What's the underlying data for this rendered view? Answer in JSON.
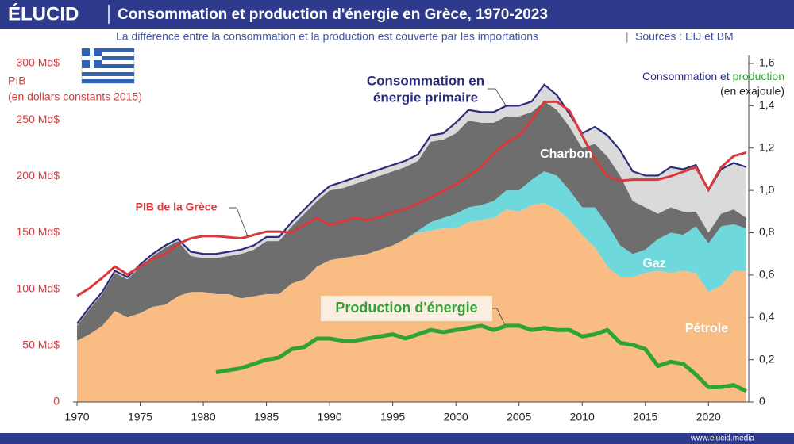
{
  "header": {
    "logo": "ÉLUCID",
    "title": "Consommation et production d'énergie en Grèce, 1970-2023",
    "subtitle": "La différence entre la consommation et la production est couverte par les importations",
    "sources": "Sources : EIJ et BM"
  },
  "footer": "www.elucid.media",
  "chart_data": {
    "type": "stacked_area_line",
    "left_axis_label": [
      "PIB",
      "(en dollars constants 2015)"
    ],
    "right_axis_label": [
      "Consommation et ",
      "production",
      "(en exajoule)"
    ],
    "x": [
      1970,
      1971,
      1972,
      1973,
      1974,
      1975,
      1976,
      1977,
      1978,
      1979,
      1980,
      1981,
      1982,
      1983,
      1984,
      1985,
      1986,
      1987,
      1988,
      1989,
      1990,
      1991,
      1992,
      1993,
      1994,
      1995,
      1996,
      1997,
      1998,
      1999,
      2000,
      2001,
      2002,
      2003,
      2004,
      2005,
      2006,
      2007,
      2008,
      2009,
      2010,
      2011,
      2012,
      2013,
      2014,
      2015,
      2016,
      2017,
      2018,
      2019,
      2020,
      2021,
      2022,
      2023
    ],
    "xlim": [
      1970,
      2023
    ],
    "xticks": [
      1970,
      1975,
      1980,
      1985,
      1990,
      1995,
      2000,
      2005,
      2010,
      2015,
      2020
    ],
    "ylim": [
      0,
      300
    ],
    "yticks": [
      0,
      {
        "value": 50,
        "label": "50 Md$"
      },
      {
        "value": 100,
        "label": "100 Md$"
      },
      {
        "value": 150,
        "label": "150 Md$"
      },
      {
        "value": 200,
        "label": "200 Md$"
      },
      {
        "value": 250,
        "label": "250 Md$"
      },
      {
        "value": 300,
        "label": "300 Md$"
      }
    ],
    "y2lim": [
      0,
      1.6
    ],
    "y2ticks": [
      0,
      {
        "value": 0.2,
        "label": "0,2"
      },
      {
        "value": 0.4,
        "label": "0,4"
      },
      {
        "value": 0.6,
        "label": "0,6"
      },
      {
        "value": 0.8,
        "label": "0,8"
      },
      {
        "value": 1.0,
        "label": "1,0"
      },
      {
        "value": 1.2,
        "label": "1,2"
      },
      {
        "value": 1.4,
        "label": "1,4"
      },
      {
        "value": 1.6,
        "label": "1,6"
      }
    ],
    "outline_color": "#2b2d7c",
    "series": [
      {
        "name": "Pétrole",
        "color": "#f9bd84",
        "kind": "area",
        "axis": "y2",
        "values": [
          0.29,
          0.32,
          0.36,
          0.43,
          0.4,
          0.42,
          0.45,
          0.46,
          0.5,
          0.52,
          0.52,
          0.51,
          0.51,
          0.49,
          0.5,
          0.51,
          0.51,
          0.56,
          0.58,
          0.64,
          0.67,
          0.68,
          0.69,
          0.7,
          0.72,
          0.74,
          0.77,
          0.8,
          0.81,
          0.82,
          0.82,
          0.85,
          0.86,
          0.87,
          0.91,
          0.9,
          0.93,
          0.94,
          0.91,
          0.86,
          0.79,
          0.73,
          0.64,
          0.59,
          0.59,
          0.61,
          0.62,
          0.61,
          0.62,
          0.61,
          0.52,
          0.55,
          0.62,
          0.62
        ]
      },
      {
        "name": "Gaz",
        "color": "#6fd8dc",
        "kind": "area",
        "axis": "y2",
        "values": [
          0,
          0,
          0,
          0,
          0,
          0,
          0,
          0,
          0,
          0,
          0,
          0,
          0,
          0,
          0,
          0,
          0,
          0,
          0,
          0,
          0,
          0,
          0,
          0,
          0,
          0,
          0,
          0.01,
          0.04,
          0.05,
          0.07,
          0.07,
          0.07,
          0.08,
          0.09,
          0.1,
          0.12,
          0.15,
          0.16,
          0.14,
          0.13,
          0.19,
          0.2,
          0.15,
          0.11,
          0.11,
          0.15,
          0.19,
          0.17,
          0.22,
          0.23,
          0.28,
          0.22,
          0.2
        ]
      },
      {
        "name": "Charbon",
        "color": "#6e6e6e",
        "kind": "area",
        "axis": "y2",
        "values": [
          0.07,
          0.12,
          0.15,
          0.18,
          0.18,
          0.22,
          0.24,
          0.27,
          0.26,
          0.17,
          0.16,
          0.17,
          0.18,
          0.21,
          0.22,
          0.25,
          0.25,
          0.27,
          0.31,
          0.31,
          0.33,
          0.33,
          0.34,
          0.35,
          0.35,
          0.35,
          0.34,
          0.33,
          0.38,
          0.37,
          0.38,
          0.41,
          0.39,
          0.37,
          0.35,
          0.35,
          0.32,
          0.33,
          0.31,
          0.3,
          0.28,
          0.3,
          0.32,
          0.33,
          0.25,
          0.2,
          0.12,
          0.12,
          0.11,
          0.07,
          0.05,
          0.06,
          0.07,
          0.05
        ]
      },
      {
        "color": "#dadada",
        "kind": "area",
        "axis": "y2",
        "values": [
          0.01,
          0.01,
          0.01,
          0.01,
          0.01,
          0.01,
          0.01,
          0.01,
          0.01,
          0.02,
          0.02,
          0.02,
          0.02,
          0.02,
          0.02,
          0.02,
          0.02,
          0.02,
          0.02,
          0.02,
          0.02,
          0.03,
          0.03,
          0.03,
          0.03,
          0.03,
          0.03,
          0.03,
          0.03,
          0.03,
          0.05,
          0.05,
          0.05,
          0.05,
          0.05,
          0.05,
          0.05,
          0.08,
          0.07,
          0.06,
          0.07,
          0.08,
          0.1,
          0.12,
          0.14,
          0.15,
          0.18,
          0.19,
          0.2,
          0.22,
          0.2,
          0.21,
          0.22,
          0.24
        ]
      },
      {
        "name": "PIB de la Grèce",
        "color": "#d8393b",
        "kind": "line",
        "values": [
          94,
          101,
          110,
          120,
          113,
          120,
          127,
          131,
          140,
          145,
          147,
          147,
          146,
          145,
          148,
          151,
          151,
          150,
          157,
          163,
          157,
          160,
          163,
          161,
          164,
          168,
          171,
          176,
          181,
          187,
          193,
          200,
          208,
          220,
          230,
          236,
          250,
          266,
          266,
          258,
          236,
          215,
          200,
          196,
          197,
          197,
          197,
          200,
          204,
          208,
          188,
          208,
          218,
          221
        ]
      },
      {
        "name": "Production d'énergie",
        "color": "#2fa336",
        "kind": "line",
        "axis": "y2",
        "values": [
          null,
          null,
          null,
          null,
          null,
          null,
          null,
          null,
          null,
          null,
          null,
          0.14,
          0.15,
          0.16,
          0.18,
          0.2,
          0.21,
          0.25,
          0.26,
          0.3,
          0.3,
          0.29,
          0.29,
          0.3,
          0.31,
          0.32,
          0.3,
          0.32,
          0.34,
          0.33,
          0.34,
          0.35,
          0.36,
          0.34,
          0.36,
          0.36,
          0.34,
          0.35,
          0.34,
          0.34,
          0.31,
          0.32,
          0.34,
          0.28,
          0.27,
          0.25,
          0.17,
          0.19,
          0.18,
          0.13,
          0.07,
          0.07,
          0.08,
          0.05
        ]
      }
    ],
    "consumption_label": [
      "Consommation en",
      "énergie primaire"
    ]
  }
}
